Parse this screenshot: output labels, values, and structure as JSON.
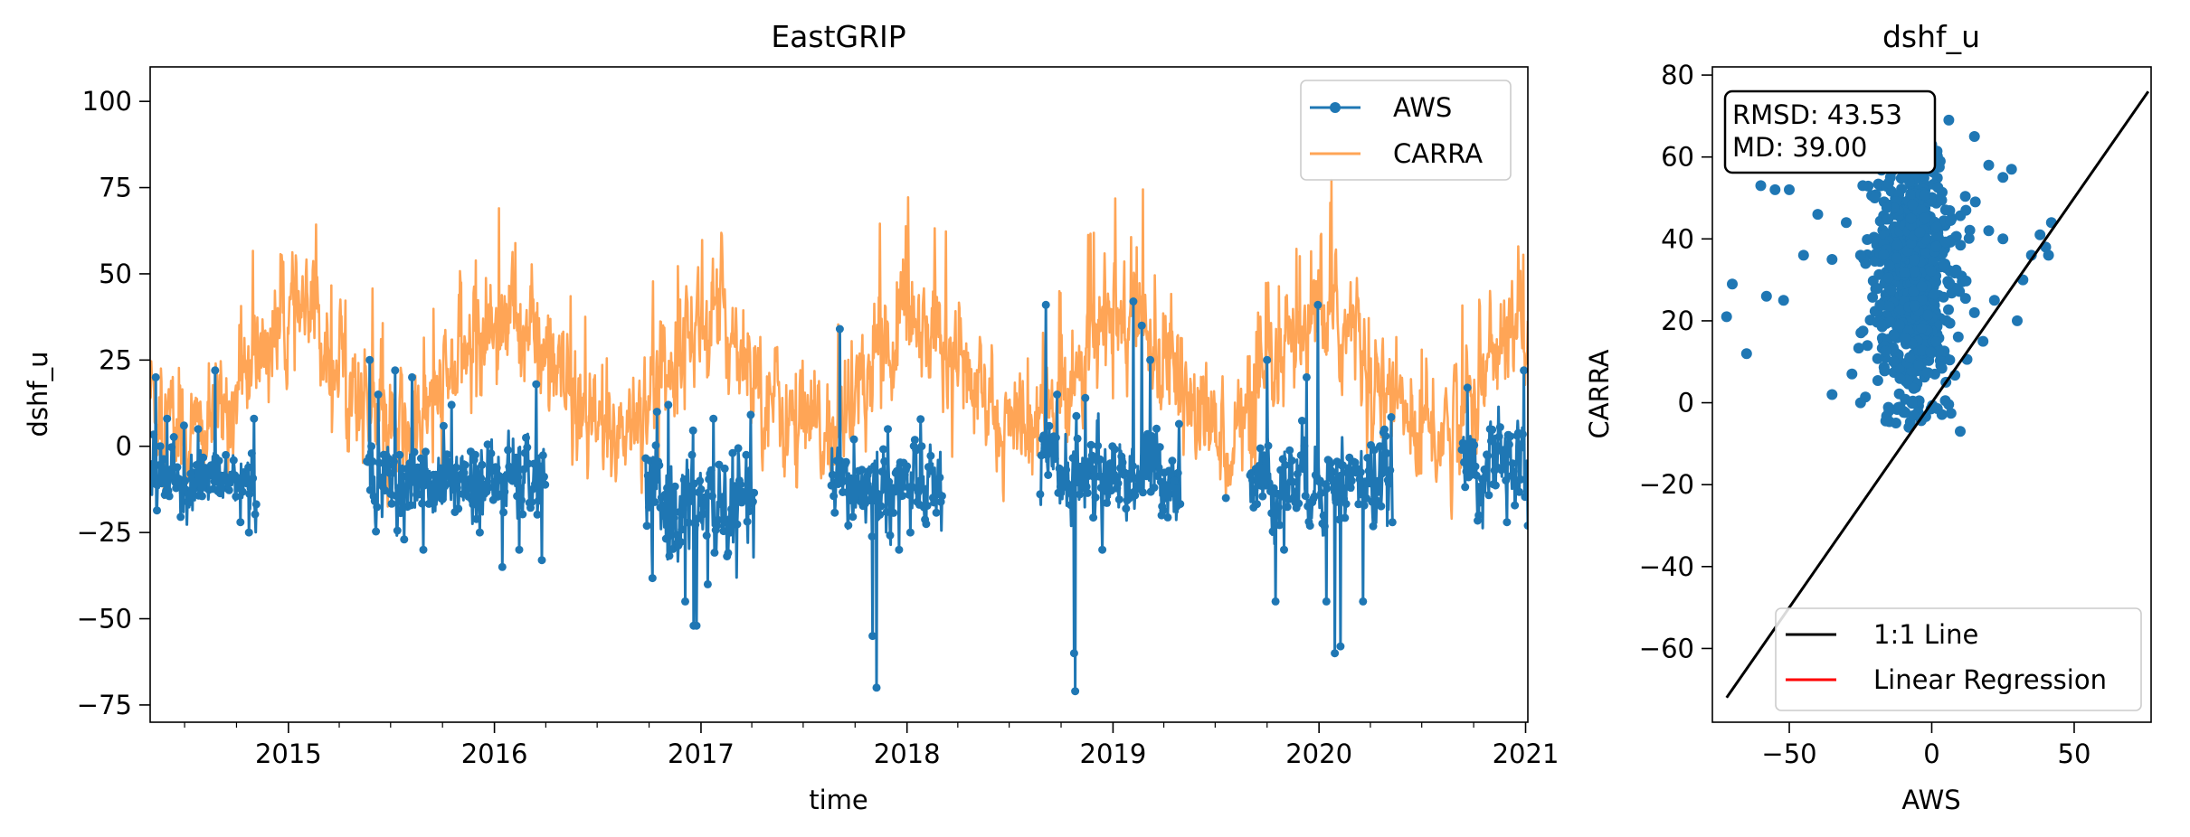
{
  "chart_data": [
    {
      "type": "line",
      "title": "EastGRIP",
      "xlabel": "time",
      "ylabel": "dshf_u",
      "xlim": [
        "2014-05-01",
        "2021-01-05"
      ],
      "ylim": [
        -80,
        110
      ],
      "x_ticks": [
        "2015",
        "2016",
        "2017",
        "2018",
        "2019",
        "2020",
        "2021"
      ],
      "y_ticks": [
        -75,
        -50,
        -25,
        0,
        25,
        50,
        75,
        100
      ],
      "legend_position": "top-right",
      "legend": [
        "AWS",
        "CARRA"
      ],
      "grid": false,
      "series": [
        {
          "name": "AWS",
          "style": "line with circle markers",
          "color": "#1f77b4",
          "segments": [
            {
              "start": "2014-05-01",
              "end": "2014-11-05",
              "mean": -10,
              "spread": 6,
              "spikes": [
                [
                  10,
                  20
                ],
                [
                  30,
                  8
                ],
                [
                  60,
                  6
                ],
                [
                  85,
                  5
                ],
                [
                  115,
                  22
                ],
                [
                  160,
                  -22
                ],
                [
                  175,
                  -25
                ],
                [
                  184,
                  8
                ]
              ]
            },
            {
              "start": "2015-05-20",
              "end": "2016-03-31",
              "mean": -10,
              "spread": 7,
              "spikes": [
                [
                  5,
                  25
                ],
                [
                  20,
                  15
                ],
                [
                  50,
                  22
                ],
                [
                  80,
                  20
                ],
                [
                  100,
                  -30
                ],
                [
                  150,
                  12
                ],
                [
                  200,
                  -25
                ],
                [
                  240,
                  -35
                ],
                [
                  270,
                  -30
                ],
                [
                  300,
                  18
                ],
                [
                  310,
                  -33
                ]
              ]
            },
            {
              "start": "2016-09-25",
              "end": "2017-04-05",
              "mean": -18,
              "spread": 10,
              "spikes": [
                [
                  20,
                  10
                ],
                [
                  40,
                  12
                ],
                [
                  70,
                  -45
                ],
                [
                  85,
                  -52
                ],
                [
                  90,
                  -52
                ],
                [
                  110,
                  -40
                ],
                [
                  120,
                  8
                ],
                [
                  150,
                  -25
                ]
              ]
            },
            {
              "start": "2017-08-20",
              "end": "2018-03-05",
              "mean": -12,
              "spread": 8,
              "spikes": [
                [
                  15,
                  34
                ],
                [
                  40,
                  2
                ],
                [
                  55,
                  -15
                ],
                [
                  73,
                  -55
                ],
                [
                  80,
                  -70
                ],
                [
                  100,
                  5
                ],
                [
                  120,
                  -30
                ],
                [
                  140,
                  -25
                ],
                [
                  160,
                  0
                ]
              ]
            },
            {
              "start": "2018-08-25",
              "end": "2019-04-30",
              "mean": -8,
              "spread": 8,
              "spikes": [
                [
                  10,
                  41
                ],
                [
                  30,
                  15
                ],
                [
                  60,
                  -60
                ],
                [
                  62,
                  -71
                ],
                [
                  80,
                  14
                ],
                [
                  110,
                  -30
                ],
                [
                  165,
                  42
                ],
                [
                  180,
                  35
                ],
                [
                  195,
                  25
                ],
                [
                  215,
                  -20
                ],
                [
                  240,
                  -10
                ]
              ]
            },
            {
              "start": "2019-09-01",
              "end": "2020-05-10",
              "mean": -10,
              "spread": 8,
              "spikes": [
                [
                  30,
                  25
                ],
                [
                  45,
                  -45
                ],
                [
                  60,
                  -30
                ],
                [
                  100,
                  20
                ],
                [
                  120,
                  41
                ],
                [
                  135,
                  -45
                ],
                [
                  150,
                  -60
                ],
                [
                  160,
                  -58
                ],
                [
                  180,
                  -10
                ],
                [
                  200,
                  -45
                ],
                [
                  230,
                  0
                ]
              ]
            },
            {
              "start": "2020-09-10",
              "end": "2021-01-05",
              "mean": -5,
              "spread": 8,
              "spikes": [
                [
                  10,
                  17
                ],
                [
                  30,
                  -20
                ],
                [
                  50,
                  5
                ],
                [
                  80,
                  -22
                ],
                [
                  110,
                  22
                ],
                [
                  117,
                  -23
                ]
              ]
            }
          ]
        },
        {
          "name": "CARRA",
          "color": "#ff7f0e",
          "opacity": 0.7,
          "style": "line",
          "seasonal_mean": 20,
          "seasonal_amplitude": 17,
          "peak_month": "Jan",
          "noise": 9
        }
      ]
    },
    {
      "type": "scatter",
      "title": "dshf_u",
      "xlabel": "AWS",
      "ylabel": "CARRA",
      "xlim": [
        -77,
        77
      ],
      "ylim": [
        -78,
        82
      ],
      "x_ticks": [
        -50,
        0,
        50
      ],
      "y_ticks": [
        -60,
        -40,
        -20,
        0,
        20,
        40,
        60,
        80
      ],
      "stats_box": [
        "RMSD: 43.53",
        "MD: 39.00"
      ],
      "legend_position": "bottom-right",
      "legend": [
        "1:1 Line",
        "Linear Regression"
      ],
      "one_to_one_line": [
        [
          -72,
          -72
        ],
        [
          76,
          76
        ]
      ],
      "point_color": "#1f77b4",
      "cluster": {
        "x_mean": -7,
        "x_std": 9,
        "y_mean": 31,
        "y_std": 15,
        "count": 900
      },
      "outlier_points": [
        [
          -72,
          21
        ],
        [
          -70,
          29
        ],
        [
          -65,
          12
        ],
        [
          -60,
          53
        ],
        [
          -58,
          26
        ],
        [
          -55,
          52
        ],
        [
          -52,
          25
        ],
        [
          -50,
          52
        ],
        [
          -45,
          36
        ],
        [
          -40,
          46
        ],
        [
          -35,
          35
        ],
        [
          -30,
          44
        ],
        [
          -25,
          36
        ],
        [
          -20,
          50
        ],
        [
          15,
          65
        ],
        [
          20,
          58
        ],
        [
          25,
          55
        ],
        [
          25,
          40
        ],
        [
          28,
          57
        ],
        [
          30,
          20
        ],
        [
          32,
          30
        ],
        [
          35,
          36
        ],
        [
          38,
          41
        ],
        [
          40,
          38
        ],
        [
          42,
          44
        ],
        [
          41,
          36
        ],
        [
          22,
          25
        ],
        [
          15,
          22
        ],
        [
          18,
          15
        ],
        [
          10,
          -7
        ],
        [
          5,
          5
        ],
        [
          -35,
          2
        ],
        [
          -28,
          7
        ],
        [
          -25,
          0
        ],
        [
          -15,
          -2
        ],
        [
          -8,
          -6
        ],
        [
          12,
          47
        ],
        [
          20,
          42
        ],
        [
          -5,
          60
        ],
        [
          0,
          63
        ],
        [
          6,
          69
        ]
      ]
    }
  ]
}
